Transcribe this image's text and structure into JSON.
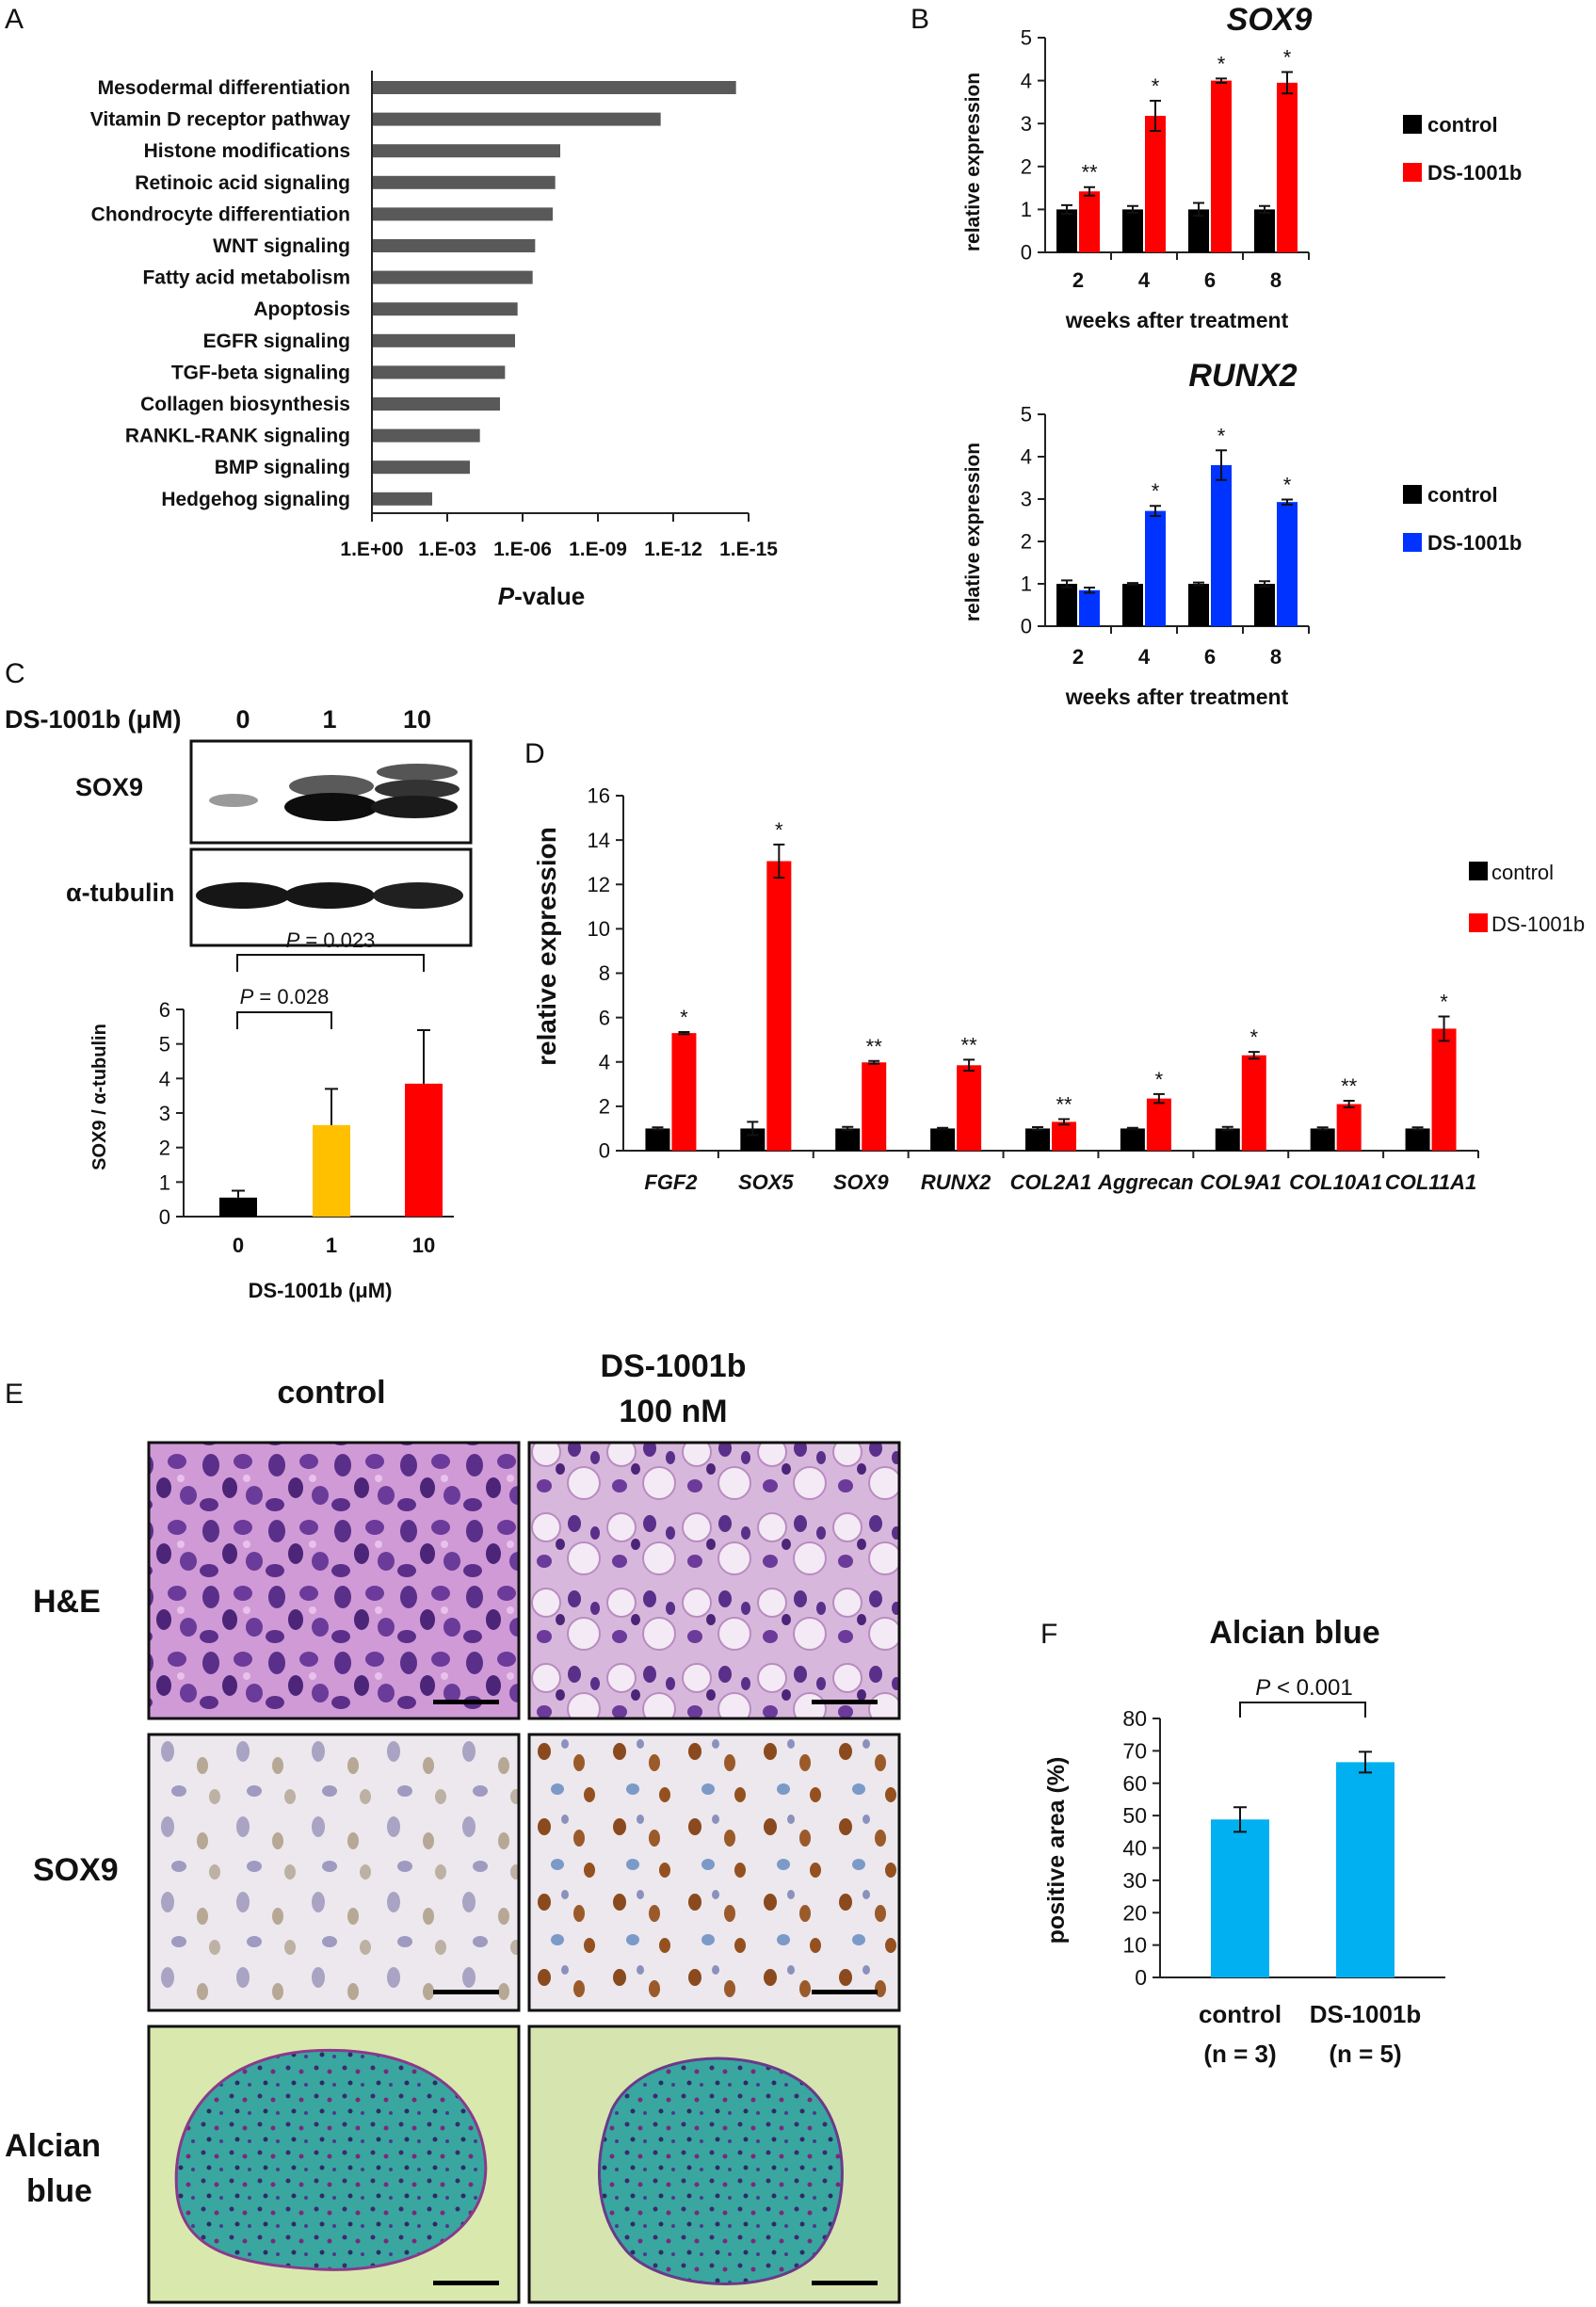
{
  "panels": {
    "A": "A",
    "B": "B",
    "C": "C",
    "D": "D",
    "E": "E",
    "F": "F"
  },
  "colors": {
    "control": "#000000",
    "red": "#ff0000",
    "blue": "#0033ff",
    "orange": "#ffc000",
    "gray": "#595959",
    "cyan": "#00b0f0",
    "he_bg": "#c98fd0",
    "sox9_bg": "#e9e6ea",
    "alcian_bg": "#d7e7a8"
  },
  "chart_data": [
    {
      "id": "A",
      "type": "bar",
      "orientation": "horizontal",
      "categories": [
        "Mesodermal differentiation",
        "Vitamin D receptor pathway",
        "Histone modifications",
        "Retinoic acid signaling",
        "Chondrocyte differentiation",
        "WNT signaling",
        "Fatty acid metabolism",
        "Apoptosis",
        "EGFR signaling",
        "TGF-beta signaling",
        "Collagen biosynthesis",
        "RANKL-RANK signaling",
        "BMP signaling",
        "Hedgehog signaling"
      ],
      "values": [
        14.5,
        11.5,
        7.5,
        7.3,
        7.2,
        6.5,
        6.4,
        5.8,
        5.7,
        5.3,
        5.1,
        4.3,
        3.9,
        2.4
      ],
      "xticks": [
        "1.E+00",
        "1.E-03",
        "1.E-06",
        "1.E-09",
        "1.E-12",
        "1.E-15"
      ],
      "xlim": [
        0,
        15
      ],
      "xlabel_italic": "P",
      "xlabel_rest": "-value"
    },
    {
      "id": "B1",
      "type": "bar",
      "title": "SOX9",
      "categories": [
        "2",
        "4",
        "6",
        "8"
      ],
      "series": [
        {
          "name": "control",
          "values": [
            1.0,
            1.0,
            1.0,
            1.0
          ],
          "errors": [
            0.1,
            0.08,
            0.15,
            0.08
          ]
        },
        {
          "name": "DS-1001b",
          "values": [
            1.42,
            3.18,
            4.0,
            3.95
          ],
          "errors": [
            0.1,
            0.35,
            0.05,
            0.25
          ]
        }
      ],
      "significance": [
        "**",
        "*",
        "*",
        "*"
      ],
      "ylim": [
        0,
        5
      ],
      "yticks": [
        "0",
        "1",
        "2",
        "3",
        "4",
        "5"
      ],
      "ylabel": "relative expression",
      "xlabel": "weeks after treatment",
      "legend": [
        "control",
        "DS-1001b"
      ]
    },
    {
      "id": "B2",
      "type": "bar",
      "title": "RUNX2",
      "categories": [
        "2",
        "4",
        "6",
        "8"
      ],
      "series": [
        {
          "name": "control",
          "values": [
            1.0,
            1.0,
            1.0,
            1.0
          ],
          "errors": [
            0.08,
            0.02,
            0.03,
            0.06
          ]
        },
        {
          "name": "DS-1001b",
          "values": [
            0.85,
            2.72,
            3.8,
            2.93
          ],
          "errors": [
            0.06,
            0.12,
            0.35,
            0.06
          ]
        }
      ],
      "significance": [
        "",
        "*",
        "*",
        "*"
      ],
      "ylim": [
        0,
        5
      ],
      "yticks": [
        "0",
        "1",
        "2",
        "3",
        "4",
        "5"
      ],
      "ylabel": "relative expression",
      "xlabel": "weeks after treatment",
      "legend": [
        "control",
        "DS-1001b"
      ]
    },
    {
      "id": "C",
      "type": "bar",
      "categories": [
        "0",
        "1",
        "10"
      ],
      "values": [
        0.55,
        2.65,
        3.85
      ],
      "errors": [
        0.2,
        1.05,
        1.55
      ],
      "ylim": [
        0,
        6
      ],
      "yticks": [
        "0",
        "1",
        "2",
        "3",
        "4",
        "5",
        "6"
      ],
      "ylabel": "SOX9 / α-tubulin",
      "xlabel": "DS-1001b (μM)",
      "comparisons": [
        {
          "label_italic": "P",
          "label_rest": " = 0.028"
        },
        {
          "label_italic": "P",
          "label_rest": " = 0.023"
        }
      ]
    },
    {
      "id": "D",
      "type": "bar",
      "categories": [
        "FGF2",
        "SOX5",
        "SOX9",
        "RUNX2",
        "COL2A1",
        "Aggrecan",
        "COL9A1",
        "COL10A1",
        "COL11A1"
      ],
      "series": [
        {
          "name": "control",
          "values": [
            1.0,
            1.0,
            1.0,
            1.0,
            1.0,
            1.0,
            1.0,
            1.0,
            1.0
          ],
          "errors": [
            0.05,
            0.3,
            0.07,
            0.03,
            0.06,
            0.03,
            0.07,
            0.05,
            0.05
          ]
        },
        {
          "name": "DS-1001b",
          "values": [
            5.3,
            13.05,
            3.98,
            3.85,
            1.3,
            2.35,
            4.3,
            2.1,
            5.5
          ],
          "errors": [
            0.05,
            0.75,
            0.06,
            0.25,
            0.12,
            0.2,
            0.15,
            0.15,
            0.55
          ]
        }
      ],
      "significance": [
        "*",
        "*",
        "**",
        "**",
        "**",
        "*",
        "*",
        "**",
        "*"
      ],
      "ylim": [
        0,
        16
      ],
      "yticks": [
        "0",
        "2",
        "4",
        "6",
        "8",
        "10",
        "12",
        "14",
        "16"
      ],
      "ylabel": "relative expression",
      "legend": [
        "control",
        "DS-1001b"
      ]
    },
    {
      "id": "F",
      "type": "bar",
      "title": "Alcian blue",
      "categories": [
        "control",
        "DS-1001b"
      ],
      "sublabels": [
        "(n = 3)",
        "(n = 5)"
      ],
      "values": [
        48.8,
        66.5
      ],
      "errors": [
        3.8,
        3.2
      ],
      "ylim": [
        0,
        80
      ],
      "yticks": [
        "0",
        "10",
        "20",
        "30",
        "40",
        "50",
        "60",
        "70",
        "80"
      ],
      "ylabel": "positive area (%)",
      "comparison": {
        "label_italic": "P",
        "label_rest": " < 0.001"
      }
    }
  ],
  "blot": {
    "header": "DS-1001b (μM)",
    "lanes": [
      "0",
      "1",
      "10"
    ],
    "rows": [
      "SOX9",
      "α-tubulin"
    ]
  },
  "histology": {
    "col_titles": [
      "control"
    ],
    "col_title_ds_line1": "DS-1001b",
    "col_title_ds_line2": "100 nM",
    "rows": [
      "H&E",
      "SOX9"
    ],
    "alcian_line1": "Alcian",
    "alcian_line2": "blue"
  }
}
